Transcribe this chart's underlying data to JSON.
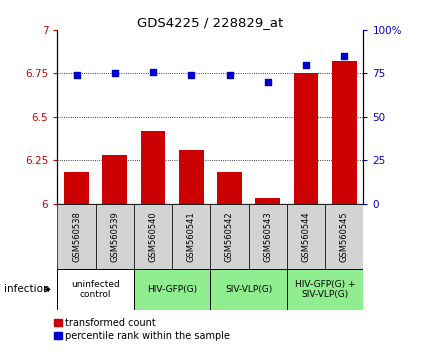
{
  "title": "GDS4225 / 228829_at",
  "samples": [
    "GSM560538",
    "GSM560539",
    "GSM560540",
    "GSM560541",
    "GSM560542",
    "GSM560543",
    "GSM560544",
    "GSM560545"
  ],
  "bar_values": [
    6.18,
    6.28,
    6.42,
    6.31,
    6.18,
    6.03,
    6.75,
    6.82
  ],
  "dot_values": [
    74,
    75,
    76,
    74,
    74,
    70,
    80,
    85
  ],
  "ylim_left": [
    6.0,
    7.0
  ],
  "ylim_right": [
    0,
    100
  ],
  "yticks_left": [
    6.0,
    6.25,
    6.5,
    6.75,
    7.0
  ],
  "yticks_right": [
    0,
    25,
    50,
    75,
    100
  ],
  "bar_color": "#CC0000",
  "dot_color": "#0000CC",
  "background_color": "#ffffff",
  "groups": [
    {
      "label": "uninfected\ncontrol",
      "start": 0,
      "end": 2,
      "color": "#ffffff"
    },
    {
      "label": "HIV-GFP(G)",
      "start": 2,
      "end": 4,
      "color": "#90EE90"
    },
    {
      "label": "SIV-VLP(G)",
      "start": 4,
      "end": 6,
      "color": "#90EE90"
    },
    {
      "label": "HIV-GFP(G) +\nSIV-VLP(G)",
      "start": 6,
      "end": 8,
      "color": "#90EE90"
    }
  ],
  "tick_row_color": "#d3d3d3",
  "infection_label": "infection",
  "legend_bar_label": "transformed count",
  "legend_dot_label": "percentile rank within the sample",
  "dotted_gridlines": [
    6.25,
    6.5,
    6.75
  ],
  "n_samples": 8
}
